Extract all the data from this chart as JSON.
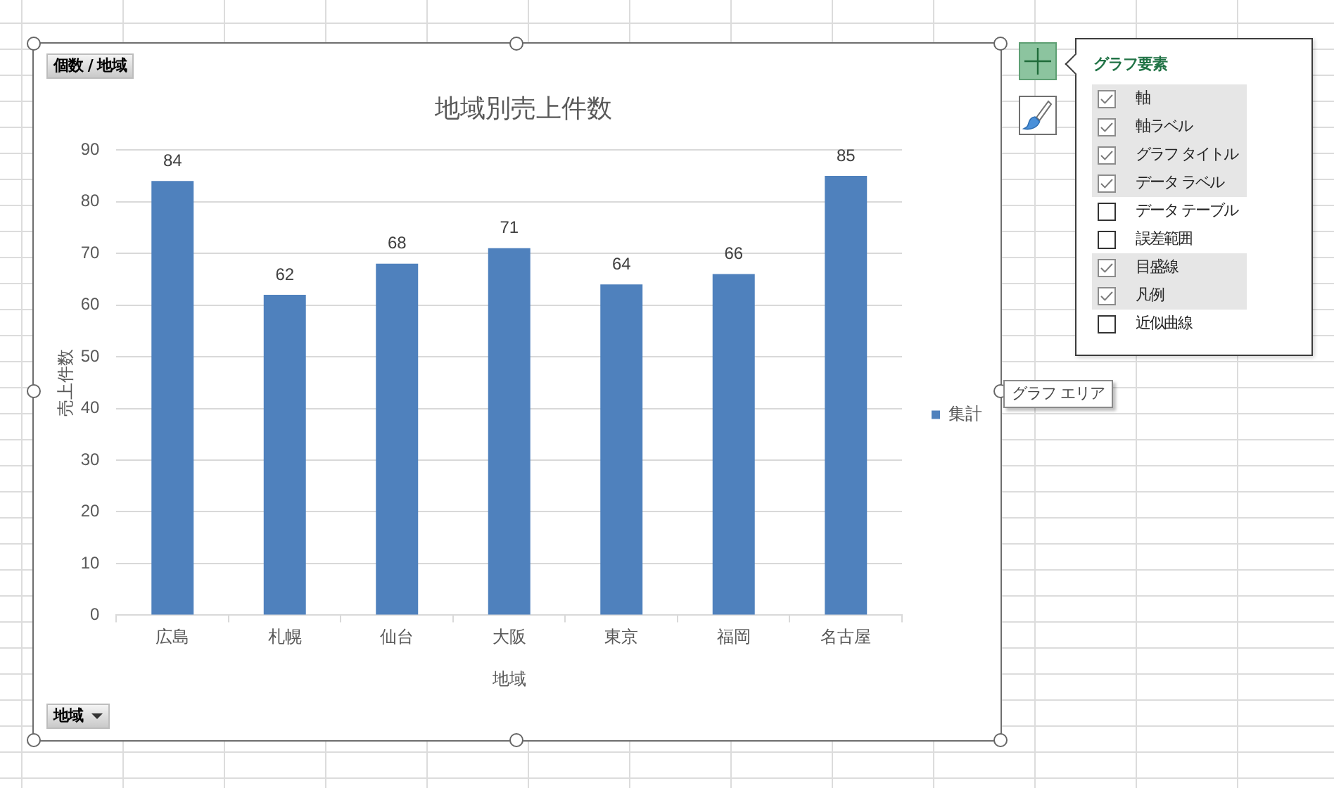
{
  "chart_data": {
    "type": "bar",
    "title": "地域別売上件数",
    "xlabel": "地域",
    "ylabel": "売上件数",
    "categories": [
      "広島",
      "札幌",
      "仙台",
      "大阪",
      "東京",
      "福岡",
      "名古屋"
    ],
    "series": [
      {
        "name": "集計",
        "color": "#4f81bd",
        "values": [
          84,
          62,
          68,
          71,
          64,
          66,
          85
        ]
      }
    ],
    "ylim": [
      0,
      90
    ],
    "yticks": [
      0,
      10,
      20,
      30,
      40,
      50,
      60,
      70,
      80,
      90
    ],
    "grid": "y",
    "legend": "right",
    "data_labels": true,
    "annotations": [
      "個数 / 地域",
      "地域",
      "グラフ要素",
      "軸",
      "軸ラベル",
      "グラフ タイトル",
      "データ ラベル",
      "データ テーブル",
      "誤差範囲",
      "目盛線",
      "凡例",
      "近似曲線",
      "グラフ エリア"
    ]
  }
}
